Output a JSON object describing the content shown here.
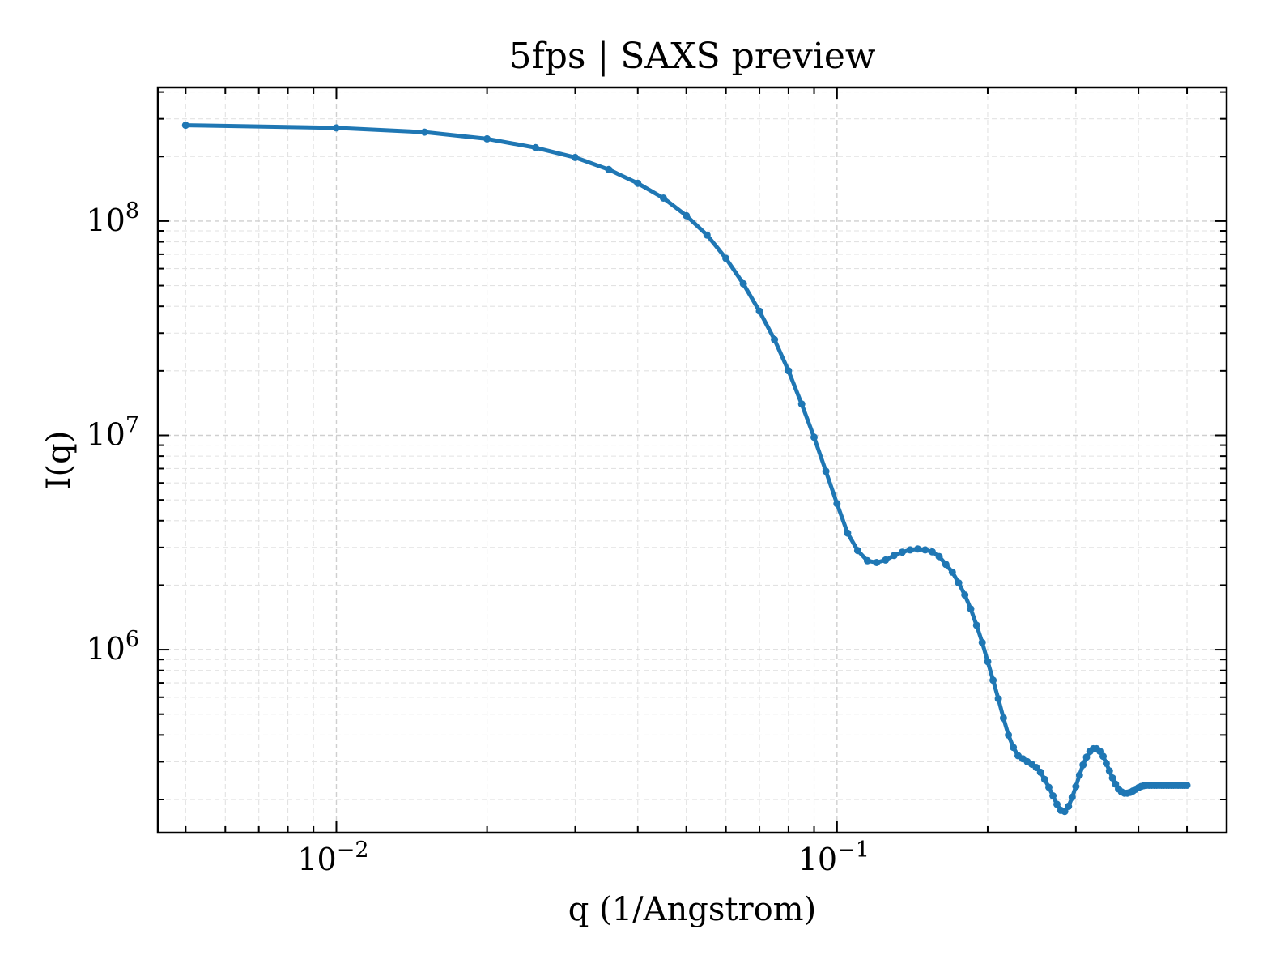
{
  "chart_data": {
    "type": "line",
    "title": "5fps | SAXS preview",
    "xlabel": "q (1/Angstrom)",
    "ylabel": "I(q)",
    "xscale": "log",
    "yscale": "log",
    "xlim": [
      0.0044,
      0.6
    ],
    "ylim": [
      140000,
      420000000
    ],
    "grid": true,
    "legend": "none",
    "line_color": "#1f77b4",
    "x_ticks": [
      {
        "value": 0.01,
        "base": "10",
        "exp": "−2"
      },
      {
        "value": 0.1,
        "base": "10",
        "exp": "−1"
      }
    ],
    "y_ticks": [
      {
        "value": 1000000,
        "base": "10",
        "exp": "6"
      },
      {
        "value": 10000000,
        "base": "10",
        "exp": "7"
      },
      {
        "value": 100000000,
        "base": "10",
        "exp": "8"
      }
    ],
    "series": [
      {
        "x": [
          0.005,
          0.01,
          0.015,
          0.02,
          0.025,
          0.03,
          0.035,
          0.04,
          0.045,
          0.05,
          0.055,
          0.06,
          0.065,
          0.07,
          0.075,
          0.08,
          0.085,
          0.09,
          0.095,
          0.1,
          0.105,
          0.11,
          0.115,
          0.12,
          0.125,
          0.13,
          0.135,
          0.14,
          0.145,
          0.15,
          0.155,
          0.16,
          0.165,
          0.17,
          0.175,
          0.18,
          0.185,
          0.19,
          0.195,
          0.2,
          0.205,
          0.21,
          0.215,
          0.22,
          0.225,
          0.23,
          0.235,
          0.24,
          0.245,
          0.25,
          0.255,
          0.26,
          0.265,
          0.27,
          0.275,
          0.28,
          0.285,
          0.29,
          0.295,
          0.3,
          0.305,
          0.31,
          0.315,
          0.32,
          0.325,
          0.33,
          0.335,
          0.34,
          0.345,
          0.35,
          0.355,
          0.36,
          0.365,
          0.37,
          0.375,
          0.38,
          0.385,
          0.39,
          0.395,
          0.4,
          0.405,
          0.41,
          0.415,
          0.42,
          0.425,
          0.43,
          0.435,
          0.44,
          0.445,
          0.45,
          0.455,
          0.46,
          0.465,
          0.47,
          0.475,
          0.48,
          0.485,
          0.49,
          0.495,
          0.5
        ],
        "y": [
          280000000,
          272000000,
          260000000,
          242000000,
          220000000,
          198000000,
          174000000,
          150000000,
          128000000,
          106000000,
          86000000,
          67000000,
          51000000,
          38000000,
          28000000,
          20000000,
          14000000,
          9800000,
          6800000,
          4800000,
          3500000,
          2900000,
          2600000,
          2550000,
          2620000,
          2750000,
          2850000,
          2920000,
          2950000,
          2920000,
          2860000,
          2720000,
          2500000,
          2300000,
          2050000,
          1800000,
          1550000,
          1300000,
          1080000,
          880000,
          720000,
          590000,
          480000,
          400000,
          350000,
          320000,
          310000,
          300000,
          292000,
          282000,
          268000,
          248000,
          228000,
          208000,
          190000,
          178000,
          176000,
          186000,
          205000,
          230000,
          260000,
          290000,
          315000,
          335000,
          345000,
          345000,
          336000,
          318000,
          295000,
          272000,
          252000,
          236000,
          224000,
          217000,
          214000,
          214000,
          216000,
          219000,
          223000,
          227000,
          230000,
          232000,
          233000,
          233000,
          233000,
          233000,
          233000,
          233000,
          233000,
          233000,
          233000,
          233000,
          233000,
          233000,
          233000,
          233000,
          233000,
          233000,
          233000,
          233000
        ]
      }
    ]
  }
}
